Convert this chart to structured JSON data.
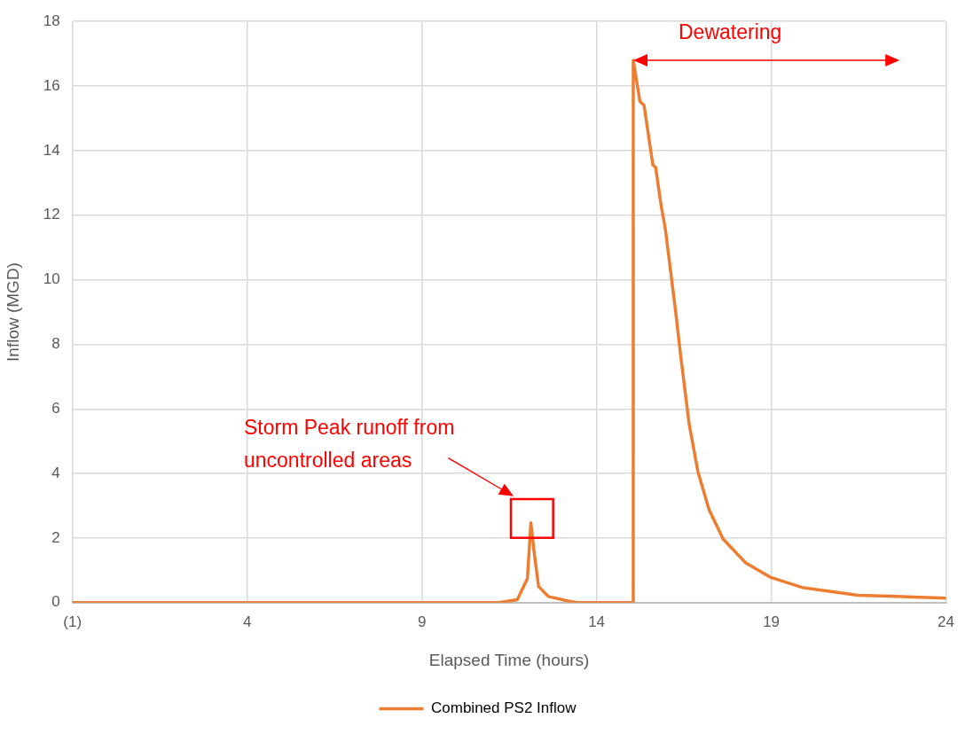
{
  "chart_data": {
    "type": "line",
    "xlabel": "Elapsed Time (hours)",
    "ylabel": "Inflow (MGD)",
    "xlim": [
      -1,
      24
    ],
    "xticks": [
      {
        "value": -1,
        "label": "(1)"
      },
      4,
      9,
      14,
      19,
      24
    ],
    "ylim": [
      0,
      18
    ],
    "yticks": [
      0,
      2,
      4,
      6,
      8,
      10,
      12,
      14,
      16,
      18
    ],
    "grid": true,
    "legend": "bottom",
    "marker": "none",
    "line_style": "solid",
    "series": [
      {
        "name": "Combined PS2 Inflow",
        "color": "#ed7d31",
        "x": [
          -1,
          11.2,
          11.73,
          12.02,
          12.12,
          12.22,
          12.34,
          12.62,
          13.19,
          13.43,
          15.04,
          15.05,
          15.24,
          15.36,
          15.61,
          15.69,
          15.85,
          15.97,
          16.26,
          16.41,
          16.65,
          16.9,
          17.22,
          17.62,
          18.27,
          18.99,
          19.88,
          21.48,
          24
        ],
        "values": [
          0,
          0,
          0.09,
          0.74,
          2.47,
          1.5,
          0.5,
          0.19,
          0.05,
          0,
          0,
          16.8,
          15.53,
          15.4,
          13.56,
          13.48,
          12.28,
          11.56,
          9.04,
          7.62,
          5.53,
          4.06,
          2.88,
          1.97,
          1.23,
          0.78,
          0.47,
          0.23,
          0.14
        ]
      }
    ],
    "annotations": [
      "Dewatering",
      "Storm Peak runoff from uncontrolled areas"
    ]
  }
}
